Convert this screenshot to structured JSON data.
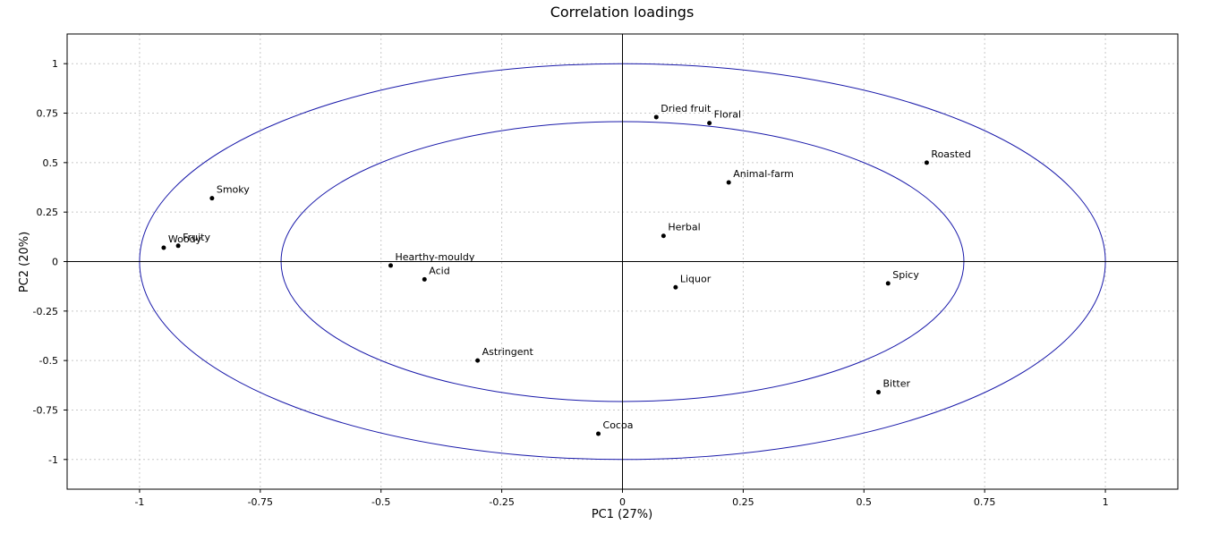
{
  "chart_data": {
    "type": "scatter",
    "title": "Correlation loadings",
    "xlabel": "PC1 (27%)",
    "ylabel": "PC2 (20%)",
    "xlim": [
      -1.15,
      1.15
    ],
    "ylim": [
      -1.15,
      1.15
    ],
    "x_ticks": [
      -1,
      -0.75,
      -0.5,
      -0.25,
      0,
      0.25,
      0.5,
      0.75,
      1
    ],
    "y_ticks": [
      -1,
      -0.75,
      -0.5,
      -0.25,
      0,
      0.25,
      0.5,
      0.75,
      1
    ],
    "x_tick_labels": [
      "-1",
      "-0.75",
      "-0.5",
      "-0.25",
      "0",
      "0.25",
      "0.5",
      "0.75",
      "1"
    ],
    "y_tick_labels": [
      "-1",
      "-0.75",
      "-0.5",
      "-0.25",
      "0",
      "0.25",
      "0.5",
      "0.75",
      "1"
    ],
    "grid": true,
    "circles": [
      {
        "radius": 1,
        "color": "#1a1aaa"
      },
      {
        "radius": 0.707,
        "color": "#1a1aaa"
      }
    ],
    "points": [
      {
        "label": "Dried fruit",
        "x": 0.07,
        "y": 0.73
      },
      {
        "label": "Floral",
        "x": 0.18,
        "y": 0.7
      },
      {
        "label": "Roasted",
        "x": 0.63,
        "y": 0.5
      },
      {
        "label": "Animal-farm",
        "x": 0.22,
        "y": 0.4
      },
      {
        "label": "Smoky",
        "x": -0.85,
        "y": 0.32
      },
      {
        "label": "Herbal",
        "x": 0.085,
        "y": 0.13
      },
      {
        "label": "Woody",
        "x": -0.95,
        "y": 0.07
      },
      {
        "label": "Fruity",
        "x": -0.92,
        "y": 0.08
      },
      {
        "label": "Hearthy-mouldy",
        "x": -0.48,
        "y": -0.02
      },
      {
        "label": "Acid",
        "x": -0.41,
        "y": -0.09
      },
      {
        "label": "Spicy",
        "x": 0.55,
        "y": -0.11
      },
      {
        "label": "Liquor",
        "x": 0.11,
        "y": -0.13
      },
      {
        "label": "Astringent",
        "x": -0.3,
        "y": -0.5
      },
      {
        "label": "Bitter",
        "x": 0.53,
        "y": -0.66
      },
      {
        "label": "Cocoa",
        "x": -0.05,
        "y": -0.87
      }
    ],
    "point_color": "#000000",
    "axis_color": "#000000",
    "grid_color": "#c8c8c8"
  }
}
